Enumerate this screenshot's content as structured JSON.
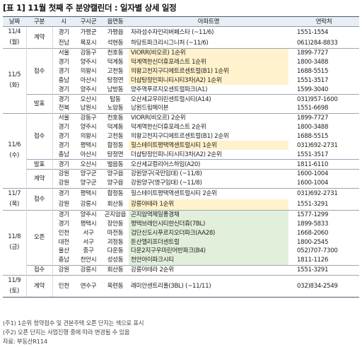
{
  "title": "[표 1] 11월 첫째 주 분양캘린더 : 일자별 상세 일정",
  "columns": [
    "날짜",
    "구분",
    "시",
    "구시군",
    "읍면동",
    "아파트명",
    "연락처"
  ],
  "groups": [
    {
      "date": "11/4\n(월)",
      "cats": [
        {
          "cat": "계약",
          "rows": [
            {
              "si": "경기",
              "gu": "가평군",
              "dong": "가평읍",
              "apt": "자라섬수자인리버페스타 (~11/6)",
              "tel": "1551-1554",
              "hl": ""
            },
            {
              "si": "전남",
              "gu": "목포시",
              "dong": "석현동",
              "apt": "하당트파크리시그니처 (~11/6)",
              "tel": "061)284-8833",
              "hl": ""
            }
          ]
        }
      ]
    },
    {
      "date": "11/5\n(화)",
      "cats": [
        {
          "cat": "접수",
          "rows": [
            {
              "si": "서울",
              "gu": "강동구",
              "dong": "천호동",
              "apt": "VIORR(비오르) 1순위",
              "tel": "1899-7727",
              "hl": "yellow"
            },
            {
              "si": "경기",
              "gu": "양주시",
              "dong": "덕계동",
              "apt": "덕계역한신더휴포레스트 1순위",
              "tel": "1800-3488",
              "hl": "yellow"
            },
            {
              "si": "경기",
              "gu": "의왕시",
              "dong": "고천동",
              "apt": "의왕고천지구디에트르센트럴(B1) 1순위",
              "tel": "1688-5515",
              "hl": "yellow"
            },
            {
              "si": "충남",
              "gu": "아산시",
              "dong": "탕정면",
              "apt": "더샵탕정인피니티시티3차(A2) 1순위",
              "tel": "1551-3517",
              "hl": "yellow"
            },
            {
              "si": "경기",
              "gu": "양주시",
              "dong": "남방동",
              "apt": "양주역푸르지오센트럴파크(A1)",
              "tel": "1599-3040",
              "hl": ""
            }
          ]
        },
        {
          "cat": "발표",
          "rows": [
            {
              "si": "경기",
              "gu": "오산시",
              "dong": "탑동",
              "apt": "오산세교우미린센트럴시티(A14)",
              "tel": "031)957-1600",
              "hl": ""
            },
            {
              "si": "전북",
              "gu": "남원시",
              "dong": "노암동",
              "apt": "남원드림헤이븐",
              "tel": "1551-6698",
              "hl": ""
            }
          ]
        }
      ]
    },
    {
      "date": "11/6\n(수)",
      "cats": [
        {
          "cat": "접수",
          "rows": [
            {
              "si": "서울",
              "gu": "강동구",
              "dong": "천호동",
              "apt": "VIORR(비오르) 2순위",
              "tel": "1899-7727",
              "hl": ""
            },
            {
              "si": "경기",
              "gu": "양주시",
              "dong": "덕계동",
              "apt": "덕계역한신더휴포레스트 2순위",
              "tel": "1800-3488",
              "hl": ""
            },
            {
              "si": "경기",
              "gu": "의왕시",
              "dong": "고천동",
              "apt": "의왕고천지구디에트르센트럴(B1) 2순위",
              "tel": "1688-5515",
              "hl": ""
            },
            {
              "si": "경기",
              "gu": "평택시",
              "dong": "합정동",
              "apt": "힐스테이트평택역센트럴시티 1순위",
              "tel": "031)692-2731",
              "hl": "yellow"
            },
            {
              "si": "충남",
              "gu": "아산시",
              "dong": "탕정면",
              "apt": "더샵탕정인피니티시티3차(A2) 2순위",
              "tel": "1551-3517",
              "hl": ""
            }
          ]
        },
        {
          "cat": "발표",
          "rows": [
            {
              "si": "경기",
              "gu": "오산시",
              "dong": "벌음동",
              "apt": "오산세교컬리어스하임(A20)",
              "tel": "1811-6110",
              "hl": ""
            }
          ]
        },
        {
          "cat": "계약",
          "rows": [
            {
              "si": "강원",
              "gu": "양구군",
              "dong": "양구읍",
              "apt": "강원양구(국민임대) (~11/8)",
              "tel": "1600-1004",
              "hl": ""
            },
            {
              "si": "강원",
              "gu": "양구군",
              "dong": "양구읍",
              "apt": "강원양구(영구임대) (~11/8)",
              "tel": "1600-1004",
              "hl": ""
            }
          ]
        }
      ]
    },
    {
      "date": "11/7\n(목)",
      "cats": [
        {
          "cat": "접수",
          "rows": [
            {
              "si": "경기",
              "gu": "평택시",
              "dong": "합정동",
              "apt": "힐스테이트평택역센트럴시티 2순위",
              "tel": "031)692-2731",
              "hl": ""
            },
            {
              "si": "강원",
              "gu": "강릉시",
              "dong": "회산동",
              "apt": "강릉아테라 1순위",
              "tel": "1551-3291",
              "hl": "yellow"
            }
          ]
        }
      ]
    },
    {
      "date": "11/8\n(금)",
      "cats": [
        {
          "cat": "오픈",
          "rows": [
            {
              "si": "경기",
              "gu": "양주시",
              "dong": "곤지암읍",
              "apt": "곤지암역제일풍경채",
              "tel": "1577-1299",
              "hl": "green"
            },
            {
              "si": "경기",
              "gu": "평택시",
              "dong": "장안동",
              "apt": "평택브레인시티한신더휴(7BL)",
              "tel": "1899-5833",
              "hl": "green"
            },
            {
              "si": "인천",
              "gu": "서구",
              "dong": "마전동",
              "apt": "검단신도시푸르지오더파크(AA28)",
              "tel": "1668-2060",
              "hl": "green"
            },
            {
              "si": "대전",
              "gu": "서구",
              "dong": "괴정동",
              "apt": "둔산엘리프더센트럴",
              "tel": "1800-2545",
              "hl": "green"
            },
            {
              "si": "울산",
              "gu": "중구",
              "dong": "다운동",
              "apt": "다운2지구우미린어반파크(B4)",
              "tel": "052)707-7300",
              "hl": "green"
            },
            {
              "si": "충남",
              "gu": "천안시",
              "dong": "성성동",
              "apt": "천안아이파크시티",
              "tel": "1811-1126",
              "hl": "green"
            }
          ]
        },
        {
          "cat": "접수",
          "rows": [
            {
              "si": "강원",
              "gu": "강릉시",
              "dong": "회산동",
              "apt": "강릉아테라 2순위",
              "tel": "1551-3291",
              "hl": ""
            }
          ]
        }
      ]
    },
    {
      "date": "11/9\n(토)",
      "cats": [
        {
          "cat": "계약",
          "rows": [
            {
              "si": "인천",
              "gu": "연수구",
              "dong": "옥련동",
              "apt": "래미안센트리폴(3BL) (~11/11)",
              "tel": "032)834-2549",
              "hl": ""
            }
          ]
        }
      ]
    }
  ],
  "notes": [
    "(주1) 1순위 청약접수 및 견본주택 오픈 단지는 색으로 표시",
    "(주2) 오픈 단지는 사업진행 중에 따라 변경될 수 있음",
    "자료: 부동산R114"
  ]
}
